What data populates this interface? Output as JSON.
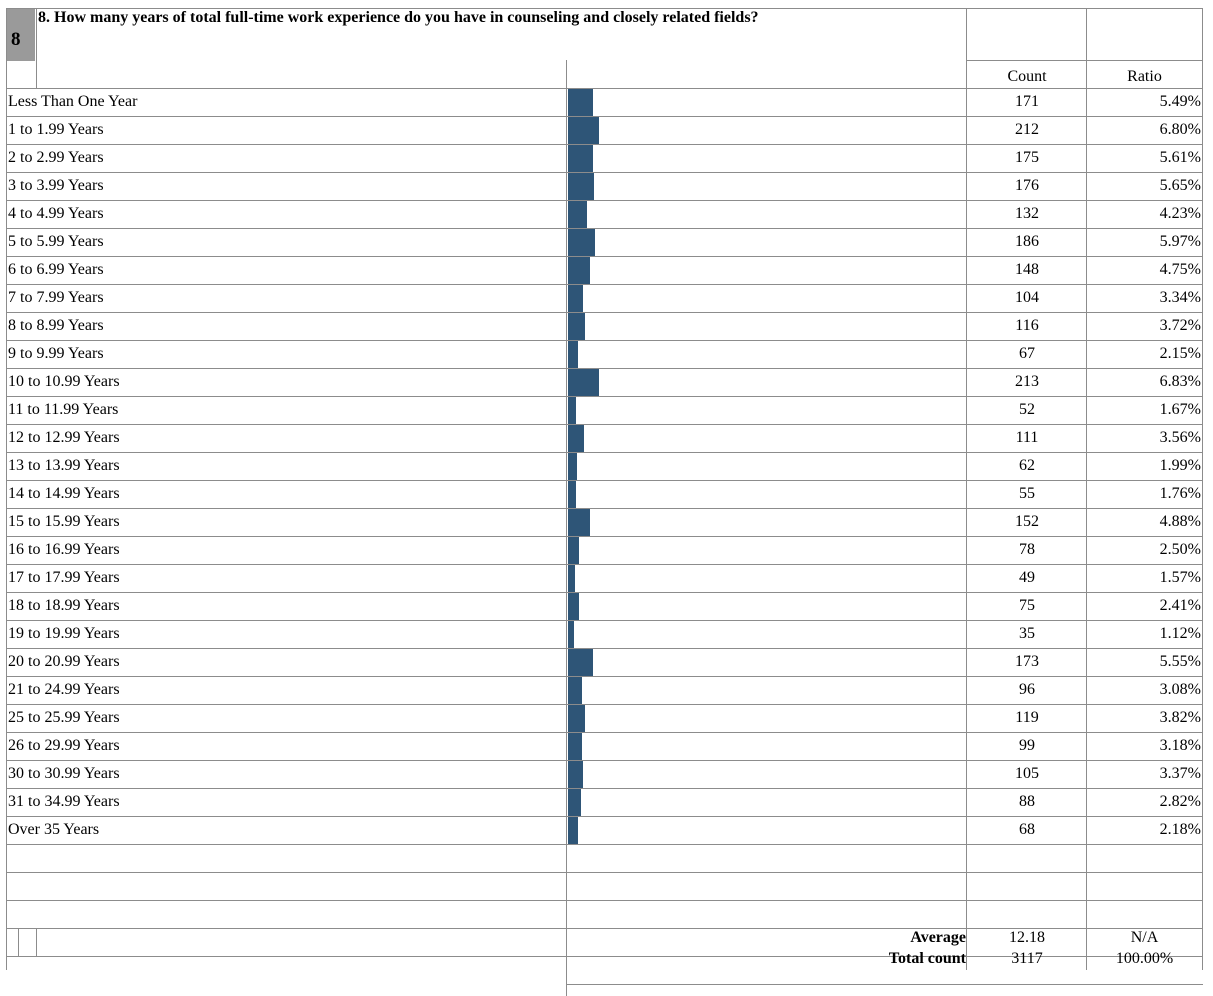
{
  "question": {
    "number": "8",
    "text": "8. How many years of total full-time work experience do you have in counseling and closely related fields?"
  },
  "headers": {
    "count": "Count",
    "ratio": "Ratio"
  },
  "colors": {
    "bar": "#2e5577",
    "grid": "#8c8c8c",
    "badge": "#9a9a9a"
  },
  "rows": [
    {
      "label": "Less Than One Year",
      "count": "171",
      "ratio": "5.49%"
    },
    {
      "label": "1 to 1.99 Years",
      "count": "212",
      "ratio": "6.80%"
    },
    {
      "label": "2 to 2.99 Years",
      "count": "175",
      "ratio": "5.61%"
    },
    {
      "label": "3 to 3.99 Years",
      "count": "176",
      "ratio": "5.65%"
    },
    {
      "label": "4 to 4.99 Years",
      "count": "132",
      "ratio": "4.23%"
    },
    {
      "label": "5 to 5.99 Years",
      "count": "186",
      "ratio": "5.97%"
    },
    {
      "label": "6 to 6.99 Years",
      "count": "148",
      "ratio": "4.75%"
    },
    {
      "label": "7 to 7.99 Years",
      "count": "104",
      "ratio": "3.34%"
    },
    {
      "label": "8 to 8.99 Years",
      "count": "116",
      "ratio": "3.72%"
    },
    {
      "label": "9 to 9.99 Years",
      "count": "67",
      "ratio": "2.15%"
    },
    {
      "label": "10 to 10.99 Years",
      "count": "213",
      "ratio": "6.83%"
    },
    {
      "label": "11 to 11.99 Years",
      "count": "52",
      "ratio": "1.67%"
    },
    {
      "label": "12 to 12.99 Years",
      "count": "111",
      "ratio": "3.56%"
    },
    {
      "label": "13 to 13.99 Years",
      "count": "62",
      "ratio": "1.99%"
    },
    {
      "label": "14 to 14.99 Years",
      "count": "55",
      "ratio": "1.76%"
    },
    {
      "label": "15 to 15.99 Years",
      "count": "152",
      "ratio": "4.88%"
    },
    {
      "label": "16 to 16.99 Years",
      "count": "78",
      "ratio": "2.50%"
    },
    {
      "label": "17 to 17.99 Years",
      "count": "49",
      "ratio": "1.57%"
    },
    {
      "label": "18 to 18.99 Years",
      "count": "75",
      "ratio": "2.41%"
    },
    {
      "label": "19 to 19.99 Years",
      "count": "35",
      "ratio": "1.12%"
    },
    {
      "label": "20 to 20.99 Years",
      "count": "173",
      "ratio": "5.55%"
    },
    {
      "label": "21 to 24.99 Years",
      "count": "96",
      "ratio": "3.08%"
    },
    {
      "label": "25 to 25.99 Years",
      "count": "119",
      "ratio": "3.82%"
    },
    {
      "label": "26 to 29.99 Years",
      "count": "99",
      "ratio": "3.18%"
    },
    {
      "label": "30 to 30.99 Years",
      "count": "105",
      "ratio": "3.37%"
    },
    {
      "label": "31 to 34.99 Years",
      "count": "88",
      "ratio": "2.82%"
    },
    {
      "label": "Over 35 Years",
      "count": "68",
      "ratio": "2.18%"
    }
  ],
  "summary": {
    "average_label": "Average",
    "average_value": "12.18",
    "average_ratio": "N/A",
    "total_label": "Total count",
    "total_value": "3117",
    "total_ratio": "100.00%"
  }
}
